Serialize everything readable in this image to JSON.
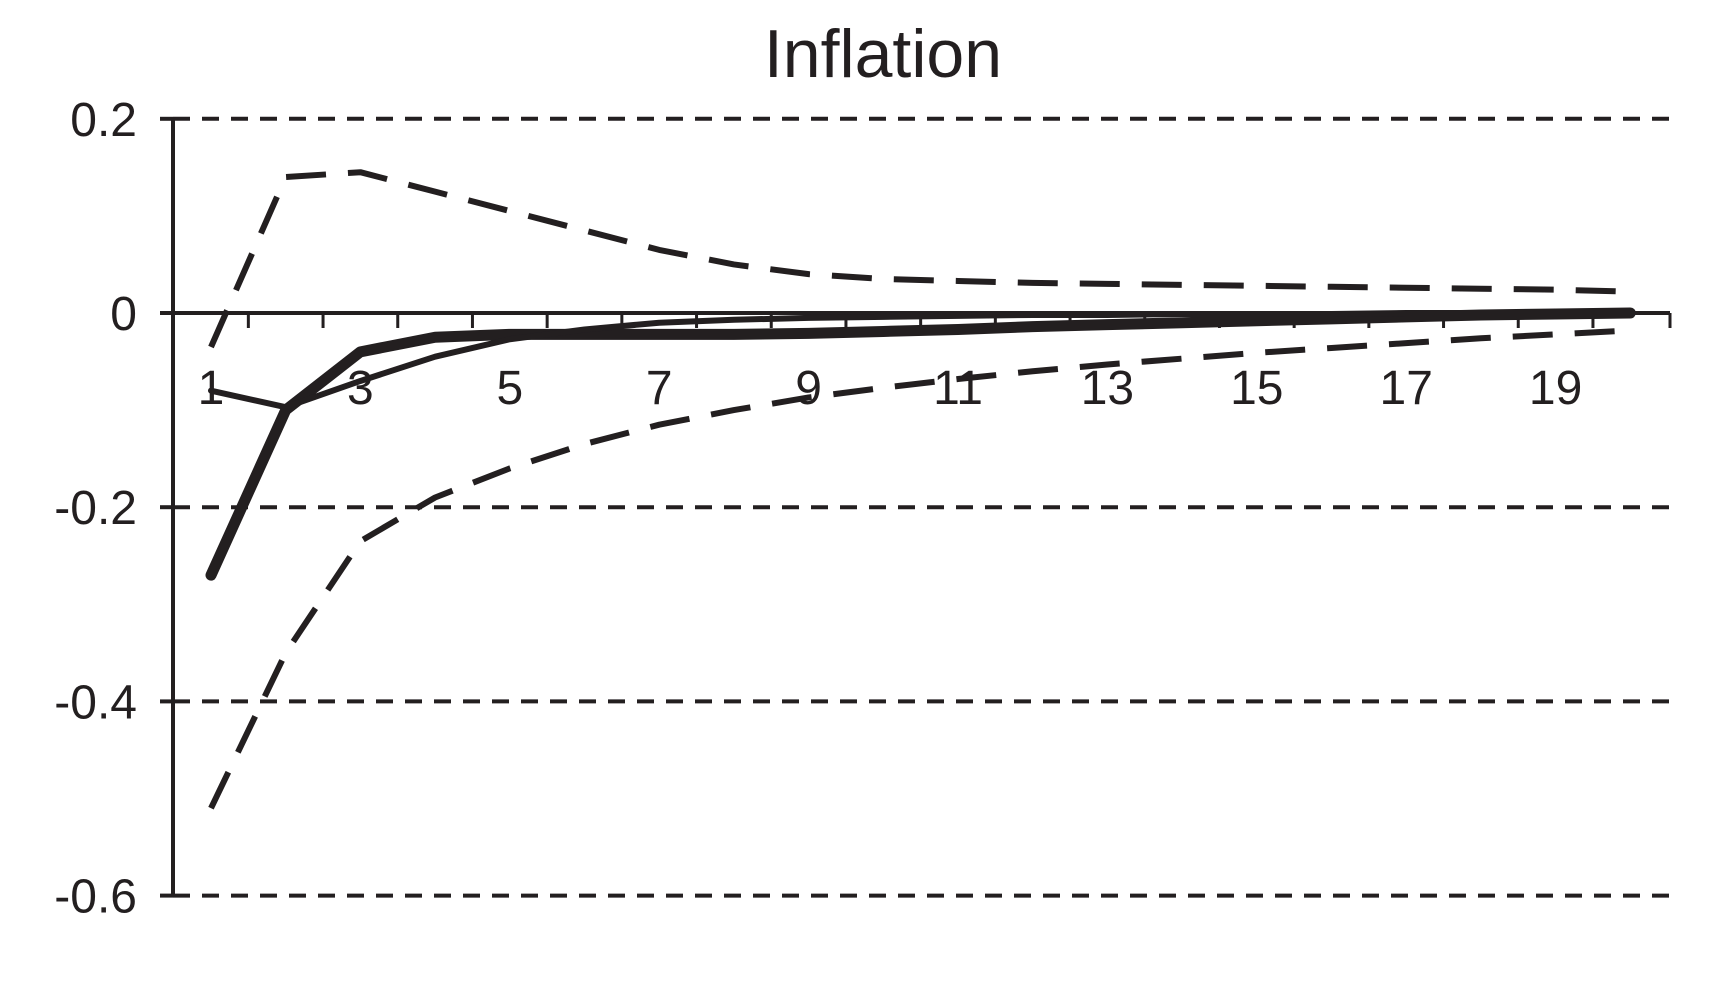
{
  "chart_data": {
    "type": "line",
    "title": "Inflation",
    "xlabel": "",
    "ylabel": "",
    "xlim": [
      1,
      20
    ],
    "ylim": [
      -0.6,
      0.2
    ],
    "x": [
      1,
      2,
      3,
      4,
      5,
      6,
      7,
      8,
      9,
      10,
      11,
      12,
      13,
      14,
      15,
      16,
      17,
      18,
      19,
      20
    ],
    "x_tick_labels": [
      "1",
      "3",
      "5",
      "7",
      "9",
      "11",
      "13",
      "15",
      "17",
      "19"
    ],
    "y_tick_labels": [
      "0.2",
      "0",
      "-0.2",
      "-0.4",
      "-0.6"
    ],
    "y_ticks": [
      0.2,
      0,
      -0.2,
      -0.4,
      -0.6
    ],
    "grid": "dashed horizontal",
    "legend": "none",
    "series": [
      {
        "style": "thick-solid",
        "values": [
          -0.27,
          -0.1,
          -0.04,
          -0.025,
          -0.022,
          -0.022,
          -0.022,
          -0.022,
          -0.021,
          -0.019,
          -0.017,
          -0.014,
          -0.012,
          -0.01,
          -0.008,
          -0.006,
          -0.004,
          -0.002,
          -0.001,
          0.0
        ]
      },
      {
        "style": "thin-solid",
        "values": [
          -0.08,
          -0.097,
          -0.07,
          -0.045,
          -0.027,
          -0.017,
          -0.01,
          -0.007,
          -0.005,
          -0.004,
          -0.003,
          -0.002,
          -0.002,
          -0.001,
          -0.001,
          -0.001,
          0.0,
          0.0,
          0.0,
          0.0
        ]
      },
      {
        "style": "dashed-upper",
        "values": [
          -0.035,
          0.14,
          0.145,
          0.125,
          0.105,
          0.085,
          0.065,
          0.05,
          0.04,
          0.035,
          0.033,
          0.031,
          0.03,
          0.029,
          0.028,
          0.027,
          0.026,
          0.025,
          0.024,
          0.022
        ]
      },
      {
        "style": "dashed-lower",
        "values": [
          -0.51,
          -0.35,
          -0.235,
          -0.19,
          -0.16,
          -0.135,
          -0.115,
          -0.1,
          -0.087,
          -0.077,
          -0.068,
          -0.06,
          -0.053,
          -0.047,
          -0.041,
          -0.036,
          -0.031,
          -0.026,
          -0.022,
          -0.018
        ]
      }
    ],
    "colors": {
      "ink": "#231f20",
      "background": "#ffffff"
    }
  }
}
